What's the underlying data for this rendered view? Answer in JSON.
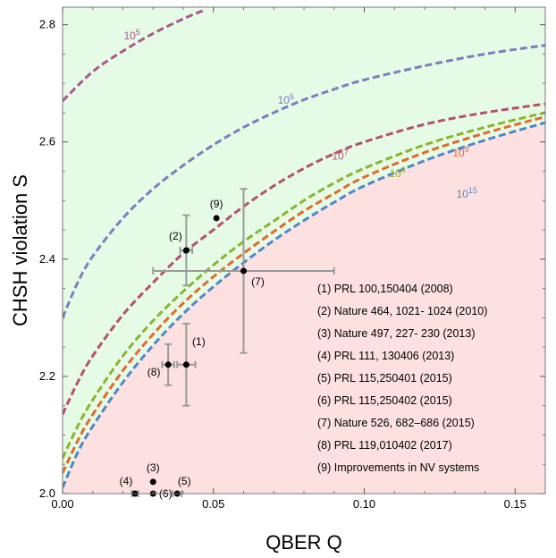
{
  "chart_data": {
    "type": "scatter",
    "xlabel": "QBER Q",
    "ylabel": "CHSH violation S",
    "xlim": [
      0,
      0.16
    ],
    "ylim": [
      2.0,
      2.83
    ],
    "x_ticks": [
      "0.00",
      "0.05",
      "0.10",
      "0.15"
    ],
    "y_ticks": [
      "2.0",
      "2.2",
      "2.4",
      "2.6",
      "2.8"
    ],
    "x_tick_values": [
      0,
      0.05,
      0.1,
      0.15
    ],
    "y_tick_values": [
      2.0,
      2.2,
      2.4,
      2.6,
      2.8
    ],
    "regions": {
      "upper_color": "#e6fbe6",
      "lower_color": "#fde1e1"
    },
    "curves": [
      {
        "label": "10",
        "exp": "5",
        "color": "#a9588c",
        "points": [
          [
            0,
            2.67
          ],
          [
            0.01,
            2.72
          ],
          [
            0.02,
            2.755
          ],
          [
            0.03,
            2.785
          ],
          [
            0.04,
            2.81
          ],
          [
            0.047,
            2.825
          ]
        ]
      },
      {
        "label": "10",
        "exp": "6",
        "color": "#7a7fc0",
        "points": [
          [
            0,
            2.3
          ],
          [
            0.005,
            2.36
          ],
          [
            0.01,
            2.405
          ],
          [
            0.02,
            2.47
          ],
          [
            0.03,
            2.52
          ],
          [
            0.04,
            2.56
          ],
          [
            0.05,
            2.595
          ],
          [
            0.06,
            2.625
          ],
          [
            0.07,
            2.65
          ],
          [
            0.08,
            2.672
          ],
          [
            0.09,
            2.69
          ],
          [
            0.1,
            2.706
          ],
          [
            0.12,
            2.73
          ],
          [
            0.14,
            2.75
          ],
          [
            0.16,
            2.765
          ]
        ]
      },
      {
        "label": "10",
        "exp": "7",
        "color": "#b55070",
        "points": [
          [
            0,
            2.135
          ],
          [
            0.005,
            2.19
          ],
          [
            0.01,
            2.235
          ],
          [
            0.02,
            2.305
          ],
          [
            0.03,
            2.36
          ],
          [
            0.04,
            2.41
          ],
          [
            0.05,
            2.45
          ],
          [
            0.06,
            2.49
          ],
          [
            0.07,
            2.525
          ],
          [
            0.08,
            2.555
          ],
          [
            0.09,
            2.58
          ],
          [
            0.1,
            2.6
          ],
          [
            0.12,
            2.63
          ],
          [
            0.14,
            2.65
          ],
          [
            0.16,
            2.665
          ]
        ]
      },
      {
        "label": "10",
        "exp": "8",
        "color": "#8ab42c",
        "points": [
          [
            0,
            2.06
          ],
          [
            0.005,
            2.115
          ],
          [
            0.01,
            2.16
          ],
          [
            0.02,
            2.235
          ],
          [
            0.03,
            2.295
          ],
          [
            0.04,
            2.345
          ],
          [
            0.05,
            2.39
          ],
          [
            0.06,
            2.43
          ],
          [
            0.07,
            2.465
          ],
          [
            0.08,
            2.5
          ],
          [
            0.09,
            2.53
          ],
          [
            0.1,
            2.555
          ],
          [
            0.12,
            2.595
          ],
          [
            0.14,
            2.625
          ],
          [
            0.16,
            2.65
          ]
        ]
      },
      {
        "label": "10",
        "exp": "9",
        "color": "#e26a2c",
        "points": [
          [
            0,
            2.035
          ],
          [
            0.005,
            2.09
          ],
          [
            0.01,
            2.135
          ],
          [
            0.02,
            2.21
          ],
          [
            0.03,
            2.272
          ],
          [
            0.04,
            2.325
          ],
          [
            0.05,
            2.37
          ],
          [
            0.06,
            2.41
          ],
          [
            0.07,
            2.447
          ],
          [
            0.08,
            2.482
          ],
          [
            0.09,
            2.512
          ],
          [
            0.1,
            2.54
          ],
          [
            0.12,
            2.582
          ],
          [
            0.14,
            2.615
          ],
          [
            0.16,
            2.643
          ]
        ]
      },
      {
        "label": "10",
        "exp": "15",
        "color": "#4f86c6",
        "points": [
          [
            0,
            2.01
          ],
          [
            0.005,
            2.07
          ],
          [
            0.01,
            2.115
          ],
          [
            0.02,
            2.19
          ],
          [
            0.03,
            2.253
          ],
          [
            0.04,
            2.307
          ],
          [
            0.05,
            2.353
          ],
          [
            0.06,
            2.394
          ],
          [
            0.07,
            2.432
          ],
          [
            0.08,
            2.466
          ],
          [
            0.09,
            2.497
          ],
          [
            0.1,
            2.525
          ],
          [
            0.12,
            2.568
          ],
          [
            0.14,
            2.603
          ],
          [
            0.16,
            2.633
          ]
        ]
      }
    ],
    "points": [
      {
        "label": "(1)",
        "x": 0.041,
        "y": 2.22,
        "xerr": 0.003,
        "yerr": 0.07
      },
      {
        "label": "(2)",
        "x": 0.041,
        "y": 2.415,
        "xerr": 0.002,
        "yerr": 0.06
      },
      {
        "label": "(3)",
        "x": 0.03,
        "y": 2.02,
        "xerr": 0,
        "yerr": 0
      },
      {
        "label": "(4)",
        "x": 0.024,
        "y": 2.0,
        "xerr": 0.001,
        "yerr": 0
      },
      {
        "label": "(5)",
        "x": 0.038,
        "y": 2.0,
        "xerr": 0.0015,
        "yerr": 0
      },
      {
        "label": "(6)",
        "x": 0.03,
        "y": 2.0,
        "xerr": 0,
        "yerr": 0
      },
      {
        "label": "(7)",
        "x": 0.06,
        "y": 2.38,
        "xerr": 0.03,
        "yerr": 0.14
      },
      {
        "label": "(8)",
        "x": 0.035,
        "y": 2.22,
        "xerr": 0.002,
        "yerr": 0.035
      },
      {
        "label": "(9)",
        "x": 0.051,
        "y": 2.47,
        "xerr": 0,
        "yerr": 0
      }
    ],
    "legend": [
      "(1) PRL 100,150404 (2008)",
      "(2) Nature 464, 1021- 1024 (2010)",
      "(3) Nature 497,  227- 230 (2013)",
      "(4) PRL 111, 130406 (2013)",
      "(5) PRL 115,250401 (2015)",
      "(6) PRL 115,250402 (2015)",
      "(7) Nature 526, 682–686 (2015)",
      "(8) PRL 119,010402 (2017)",
      "(9) Improvements in NV systems"
    ],
    "errorbar_color": "#9a9a9a"
  }
}
